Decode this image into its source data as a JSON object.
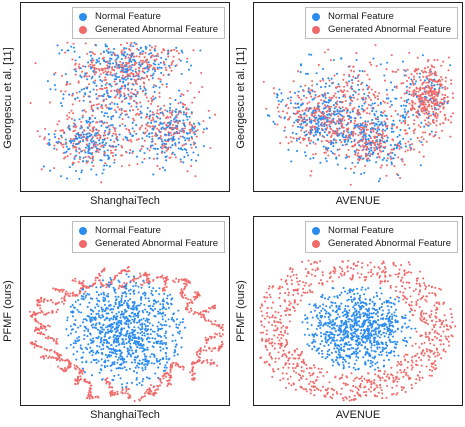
{
  "colors": {
    "normal": "#2b8cf0",
    "abnormal": "#f06a6a"
  },
  "row_labels": [
    "Georgescu et al. [11]",
    "PFMF (ours)"
  ],
  "chart_data": [
    {
      "type": "scatter",
      "method": "Georgescu et al. [11]",
      "dataset": "ShanghaiTech",
      "xlabel": "ShanghaiTech",
      "ylabel": "Georgescu et al. [11]",
      "legend": {
        "entries": [
          "Normal Feature",
          "Generated Abnormal Feature"
        ],
        "position": "top-right"
      },
      "series": [
        {
          "name": "Normal Feature",
          "color": "#2b8cf0"
        },
        {
          "name": "Generated Abnormal Feature",
          "color": "#f06a6a"
        }
      ],
      "grid": false,
      "ticks": "none"
    },
    {
      "type": "scatter",
      "method": "Georgescu et al. [11]",
      "dataset": "AVENUE",
      "xlabel": "AVENUE",
      "ylabel": "Georgescu et al. [11]",
      "legend": {
        "entries": [
          "Normal Feature",
          "Generated Abnormal Feature"
        ],
        "position": "top-right"
      },
      "series": [
        {
          "name": "Normal Feature",
          "color": "#2b8cf0"
        },
        {
          "name": "Generated Abnormal Feature",
          "color": "#f06a6a"
        }
      ],
      "grid": false,
      "ticks": "none"
    },
    {
      "type": "scatter",
      "method": "PFMF (ours)",
      "dataset": "ShanghaiTech",
      "xlabel": "ShanghaiTech",
      "ylabel": "PFMF (ours)",
      "legend": {
        "entries": [
          "Normal Feature",
          "Generated Abnormal Feature"
        ],
        "position": "top-right"
      },
      "series": [
        {
          "name": "Normal Feature",
          "color": "#2b8cf0"
        },
        {
          "name": "Generated Abnormal Feature",
          "color": "#f06a6a"
        }
      ],
      "grid": false,
      "ticks": "none"
    },
    {
      "type": "scatter",
      "method": "PFMF (ours)",
      "dataset": "AVENUE",
      "xlabel": "AVENUE",
      "ylabel": "PFMF (ours)",
      "legend": {
        "entries": [
          "Normal Feature",
          "Generated Abnormal Feature"
        ],
        "position": "top-right"
      },
      "series": [
        {
          "name": "Normal Feature",
          "color": "#2b8cf0"
        },
        {
          "name": "Generated Abnormal Feature",
          "color": "#f06a6a"
        }
      ],
      "grid": false,
      "ticks": "none"
    }
  ]
}
